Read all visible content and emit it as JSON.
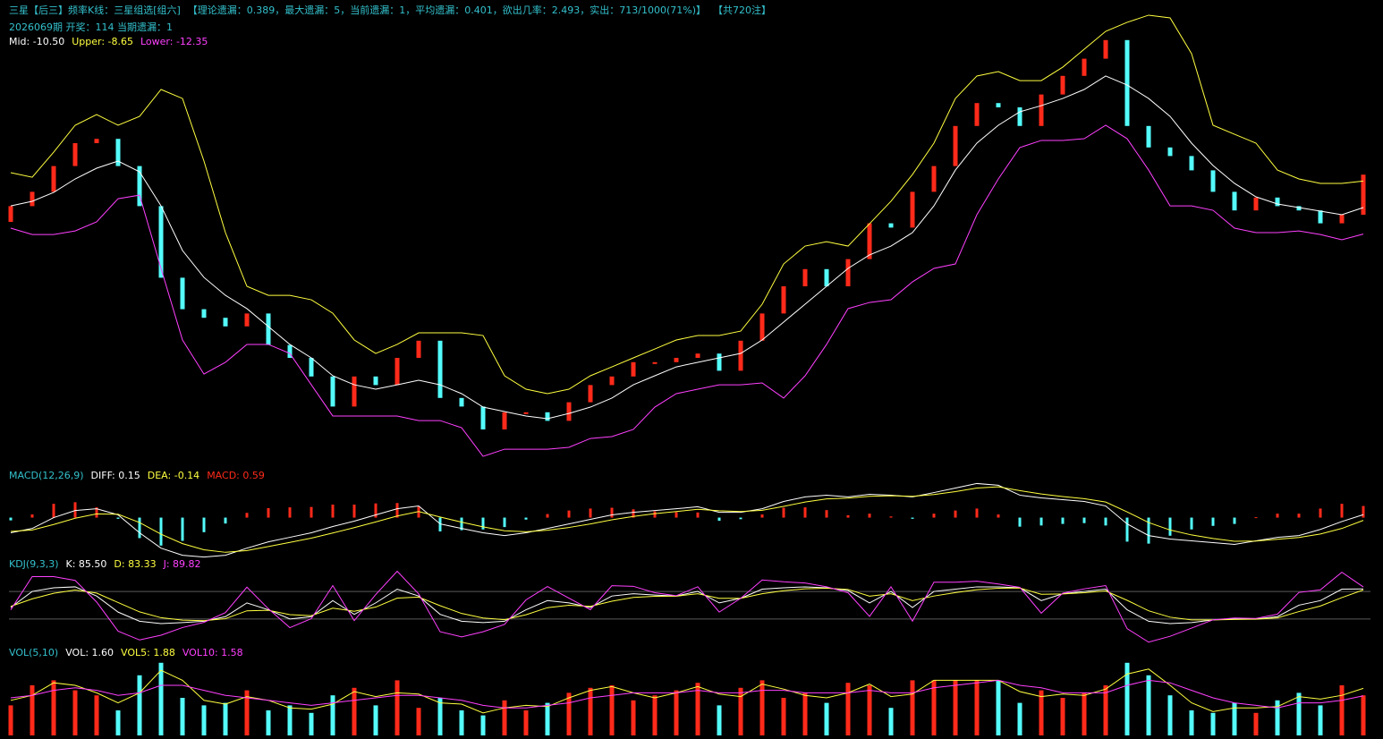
{
  "header": {
    "title": "三星【后三】频率K线：三星组选[组六]",
    "stats": "【理论遗漏：0.389，最大遗漏：5，当前遗漏：1，平均遗漏：0.401，欲出几率：2.493，实出：713/1000(71%)】",
    "count": "【共720注】",
    "draw_info": "2026069期 开奖：114 当期遗漏：1"
  },
  "chart_data": [
    {
      "type": "candlestick",
      "up_color": "#ff2a1a",
      "down_color": "#54fcfc",
      "ylim": [
        -28.5,
        3
      ],
      "open": [
        -11.5,
        -10.4,
        -9.4,
        -7.6,
        -6.0,
        -5.7,
        -7.6,
        -10.4,
        -15.4,
        -17.6,
        -18.2,
        -18.8,
        -17.9,
        -20.1,
        -21.0,
        -22.3,
        -24.4,
        -22.3,
        -22.9,
        -21.0,
        -19.8,
        -23.8,
        -24.4,
        -26.0,
        -24.8,
        -24.8,
        -25.4,
        -24.1,
        -22.9,
        -22.3,
        -21.3,
        -21.3,
        -21.0,
        -20.7,
        -21.9,
        -19.8,
        -17.9,
        -16.0,
        -14.8,
        -16.0,
        -14.1,
        -11.6,
        -11.9,
        -9.4,
        -7.6,
        -4.8,
        -3.2,
        -3.5,
        -4.8,
        -2.6,
        -1.3,
        -0.1,
        1.2,
        -4.8,
        -6.3,
        -6.9,
        -7.9,
        -9.4,
        -10.7,
        -9.8,
        -10.4,
        -10.7,
        -11.6,
        -11.0
      ],
      "close": [
        -10.4,
        -9.4,
        -7.6,
        -6.0,
        -5.7,
        -7.6,
        -10.4,
        -15.4,
        -17.6,
        -18.2,
        -18.8,
        -17.9,
        -20.1,
        -21.0,
        -22.3,
        -24.4,
        -22.3,
        -22.9,
        -21.0,
        -19.8,
        -23.8,
        -24.4,
        -26.0,
        -24.8,
        -24.8,
        -25.4,
        -24.1,
        -22.9,
        -22.3,
        -21.3,
        -21.3,
        -21.0,
        -20.7,
        -21.9,
        -19.8,
        -17.9,
        -16.0,
        -14.8,
        -16.0,
        -14.1,
        -11.6,
        -11.9,
        -9.4,
        -7.6,
        -4.8,
        -3.2,
        -3.5,
        -4.8,
        -2.6,
        -1.3,
        -0.1,
        1.2,
        -4.8,
        -6.3,
        -6.9,
        -7.9,
        -9.4,
        -10.7,
        -9.8,
        -10.4,
        -10.7,
        -11.6,
        -11.0,
        -8.2
      ],
      "series": [
        {
          "label": "Mid: -10.50",
          "color": "#ffffff",
          "values": [
            -10.38,
            -10.06,
            -9.44,
            -8.5,
            -7.75,
            -7.25,
            -8.0,
            -10.38,
            -13.5,
            -15.38,
            -16.63,
            -17.56,
            -18.81,
            -20.06,
            -21.0,
            -22.25,
            -22.88,
            -23.19,
            -22.88,
            -22.56,
            -22.88,
            -23.5,
            -24.44,
            -24.75,
            -25.06,
            -25.25,
            -24.88,
            -24.44,
            -23.81,
            -22.88,
            -22.25,
            -21.63,
            -21.31,
            -21.0,
            -20.69,
            -19.75,
            -18.5,
            -17.25,
            -16.0,
            -14.75,
            -13.81,
            -13.19,
            -12.25,
            -10.38,
            -7.88,
            -6.0,
            -4.75,
            -3.81,
            -3.38,
            -2.88,
            -2.25,
            -1.31,
            -1.94,
            -2.88,
            -4.13,
            -6.0,
            -7.56,
            -8.81,
            -9.75,
            -10.25,
            -10.5,
            -10.75,
            -11.0,
            -10.5
          ]
        },
        {
          "label": "Upper: -8.65",
          "color": "#ffff40",
          "values": [
            -8.06,
            -8.38,
            -6.63,
            -4.75,
            -4.0,
            -4.75,
            -4.13,
            -2.25,
            -2.88,
            -7.25,
            -12.25,
            -16.0,
            -16.63,
            -16.63,
            -16.94,
            -17.88,
            -19.75,
            -20.69,
            -20.06,
            -19.25,
            -19.25,
            -19.25,
            -19.44,
            -22.25,
            -23.19,
            -23.5,
            -23.19,
            -22.25,
            -21.63,
            -21.0,
            -20.38,
            -19.75,
            -19.44,
            -19.44,
            -19.13,
            -17.25,
            -14.44,
            -13.19,
            -12.88,
            -13.19,
            -11.63,
            -10.06,
            -8.19,
            -6.0,
            -2.88,
            -1.31,
            -1.0,
            -1.63,
            -1.63,
            -0.69,
            0.56,
            1.81,
            2.44,
            2.94,
            2.75,
            0.25,
            -4.75,
            -5.38,
            -6.0,
            -7.88,
            -8.5,
            -8.81,
            -8.81,
            -8.65
          ]
        },
        {
          "label": "Lower: -12.35",
          "color": "#ff40ff",
          "values": [
            -11.94,
            -12.38,
            -12.38,
            -12.13,
            -11.5,
            -9.88,
            -9.63,
            -14.75,
            -19.75,
            -22.13,
            -21.31,
            -20.06,
            -20.06,
            -20.69,
            -22.88,
            -25.06,
            -25.06,
            -25.06,
            -25.06,
            -25.38,
            -25.38,
            -25.88,
            -27.88,
            -27.38,
            -27.38,
            -27.38,
            -27.25,
            -26.63,
            -26.5,
            -26.0,
            -24.44,
            -23.5,
            -23.19,
            -22.88,
            -22.88,
            -22.75,
            -23.81,
            -22.25,
            -20.06,
            -17.56,
            -17.13,
            -16.94,
            -15.69,
            -14.75,
            -14.44,
            -11.0,
            -8.5,
            -6.31,
            -5.81,
            -5.81,
            -5.69,
            -4.75,
            -5.69,
            -7.88,
            -10.38,
            -10.38,
            -10.69,
            -11.94,
            -12.25,
            -12.25,
            -12.13,
            -12.38,
            -12.75,
            -12.35
          ]
        }
      ]
    },
    {
      "type": "bar",
      "title": "MACD(12,26,9)",
      "up_color": "#ff2a1a",
      "down_color": "#54fcfc",
      "ylim": [
        -2.2,
        1.75
      ],
      "values": [
        -0.14,
        0.16,
        0.7,
        0.78,
        0.52,
        -0.06,
        -1.04,
        -1.42,
        -1.18,
        -0.74,
        -0.3,
        0.24,
        0.48,
        0.52,
        0.54,
        0.66,
        0.66,
        0.72,
        0.74,
        0.56,
        -0.7,
        -0.64,
        -0.6,
        -0.48,
        -0.1,
        0.18,
        0.36,
        0.46,
        0.5,
        0.42,
        0.32,
        0.28,
        0.26,
        -0.16,
        -0.08,
        0.16,
        0.5,
        0.52,
        0.38,
        0.12,
        0.2,
        0.06,
        -0.06,
        0.2,
        0.36,
        0.46,
        0.16,
        -0.46,
        -0.4,
        -0.32,
        -0.28,
        -0.4,
        -1.22,
        -1.32,
        -0.92,
        -0.6,
        -0.42,
        -0.32,
        0.02,
        0.2,
        0.2,
        0.46,
        0.7,
        0.59
      ],
      "value_color": "#ff2a1a",
      "value_label": "MACD: 0.59",
      "series": [
        {
          "label": "DIFF: 0.15",
          "color": "#ffffff",
          "values": [
            -0.77,
            -0.55,
            0,
            0.36,
            0.45,
            0.14,
            -0.77,
            -1.55,
            -1.91,
            -2.0,
            -1.91,
            -1.55,
            -1.23,
            -1.0,
            -0.77,
            -0.45,
            -0.18,
            0.14,
            0.45,
            0.59,
            -0.32,
            -0.55,
            -0.77,
            -0.91,
            -0.77,
            -0.55,
            -0.32,
            -0.09,
            0.14,
            0.27,
            0.36,
            0.45,
            0.55,
            0.27,
            0.27,
            0.45,
            0.82,
            1.05,
            1.14,
            1.05,
            1.18,
            1.14,
            1.05,
            1.27,
            1.5,
            1.73,
            1.64,
            1.14,
            1.0,
            0.91,
            0.82,
            0.59,
            -0.32,
            -0.91,
            -1.09,
            -1.18,
            -1.27,
            -1.36,
            -1.18,
            -1.0,
            -0.91,
            -0.6,
            -0.2,
            0.15
          ]
        },
        {
          "label": "DEA: -0.14",
          "color": "#ffff40",
          "values": [
            -0.7,
            -0.63,
            -0.35,
            -0.03,
            0.19,
            0.17,
            -0.25,
            -0.84,
            -1.32,
            -1.63,
            -1.76,
            -1.67,
            -1.47,
            -1.26,
            -1.04,
            -0.78,
            -0.51,
            -0.22,
            0.08,
            0.31,
            0.03,
            -0.23,
            -0.47,
            -0.67,
            -0.72,
            -0.64,
            -0.5,
            -0.32,
            -0.11,
            0.06,
            0.2,
            0.31,
            0.42,
            0.35,
            0.31,
            0.37,
            0.57,
            0.79,
            0.95,
            0.99,
            1.08,
            1.11,
            1.08,
            1.17,
            1.32,
            1.5,
            1.56,
            1.37,
            1.2,
            1.07,
            0.96,
            0.79,
            0.29,
            -0.25,
            -0.63,
            -0.88,
            -1.06,
            -1.2,
            -1.19,
            -1.1,
            -1.01,
            -0.83,
            -0.55,
            -0.14
          ]
        }
      ]
    },
    {
      "type": "line",
      "title": "KDJ(9,3,3)",
      "ylim": [
        -35,
        125
      ],
      "hlines": [
        20,
        80
      ],
      "hline_color": "#5a5a5a",
      "series": [
        {
          "label": "K: 85.50",
          "color": "#ffffff",
          "values": [
            45,
            80,
            88,
            90,
            70,
            35,
            15,
            10,
            12,
            15,
            25,
            55,
            40,
            20,
            25,
            60,
            30,
            55,
            85,
            70,
            30,
            15,
            12,
            15,
            40,
            60,
            55,
            45,
            70,
            75,
            72,
            70,
            80,
            55,
            65,
            85,
            88,
            90,
            88,
            82,
            55,
            80,
            45,
            80,
            85,
            90,
            90,
            88,
            60,
            75,
            80,
            85,
            40,
            15,
            10,
            12,
            18,
            20,
            20,
            25,
            50,
            60,
            85,
            85.5
          ]
        },
        {
          "label": "D: 83.33",
          "color": "#ffff40",
          "values": [
            47.5,
            63.8,
            75.9,
            83.0,
            76.5,
            55.8,
            35.4,
            22.7,
            17.4,
            16.2,
            20.6,
            37.8,
            38.9,
            29.5,
            27.2,
            43.6,
            36.8,
            45.9,
            65.5,
            67.7,
            48.9,
            32.0,
            22.0,
            18.5,
            29.2,
            44.6,
            49.8,
            47.4,
            58.7,
            66.9,
            69.4,
            69.7,
            74.9,
            65.0,
            65.0,
            75.0,
            81.5,
            85.8,
            86.9,
            84.4,
            69.7,
            74.9,
            59.9,
            70.0,
            77.5,
            83.8,
            86.9,
            87.5,
            73.7,
            74.4,
            77.2,
            81.1,
            60.6,
            37.8,
            23.9,
            18.0,
            18.0,
            19.0,
            19.5,
            22.3,
            36.1,
            48.2,
            66.6,
            83.33
          ]
        },
        {
          "label": "J: 89.82",
          "color": "#ff40ff",
          "values": [
            40,
            112.4,
            112.2,
            104,
            57,
            -6.6,
            -25.8,
            -15.4,
            1.2,
            12.6,
            33.8,
            89.4,
            42.2,
            1,
            20.6,
            92.8,
            16.4,
            73.2,
            124,
            74.6,
            -7.8,
            -19,
            -8,
            8,
            61.6,
            90.8,
            65.4,
            40.2,
            92.6,
            91.2,
            77.2,
            70.6,
            90.2,
            35,
            65,
            105,
            101,
            98.4,
            90.2,
            77.2,
            25.6,
            90.2,
            15.2,
            100,
            100,
            102.4,
            96.2,
            89,
            32.6,
            76.2,
            85.6,
            92.8,
            -1.2,
            -30.6,
            -17.8,
            0,
            18,
            22,
            21,
            30.4,
            77.8,
            83.6,
            121.8,
            89.82
          ]
        }
      ]
    },
    {
      "type": "volume",
      "title": "VOL(5,10)",
      "up_color": "#ff2a1a",
      "down_color": "#54fcfc",
      "ylim": [
        0,
        3
      ],
      "values": [
        1.2,
        2.0,
        2.2,
        1.8,
        1.6,
        1.0,
        2.4,
        2.9,
        1.5,
        1.2,
        1.3,
        1.8,
        1.0,
        1.2,
        0.9,
        1.6,
        1.9,
        1.2,
        2.2,
        1.1,
        1.5,
        1.0,
        0.8,
        1.4,
        1.0,
        1.3,
        1.7,
        1.9,
        2.0,
        1.4,
        1.6,
        1.8,
        2.1,
        1.2,
        1.9,
        2.2,
        1.5,
        1.7,
        1.3,
        2.1,
        2.0,
        1.1,
        2.2,
        2.2,
        2.2,
        2.2,
        2.2,
        1.3,
        1.8,
        1.5,
        1.7,
        2.0,
        2.9,
        2.4,
        1.6,
        1.0,
        0.9,
        1.3,
        0.9,
        1.4,
        1.7,
        1.2,
        2.0,
        1.6
      ],
      "value_color": "#ffffff",
      "value_label": "VOL: 1.60",
      "series": [
        {
          "label": "VOL5: 1.88",
          "color": "#ffff40",
          "values": [
            1.4,
            1.6,
            2.1,
            2.0,
            1.7,
            1.3,
            1.7,
            2.6,
            2.2,
            1.4,
            1.25,
            1.55,
            1.4,
            1.1,
            1.05,
            1.25,
            1.75,
            1.55,
            1.7,
            1.65,
            1.3,
            1.25,
            0.9,
            1.1,
            1.2,
            1.15,
            1.5,
            1.8,
            1.95,
            1.7,
            1.5,
            1.7,
            1.95,
            1.65,
            1.55,
            2.05,
            1.85,
            1.6,
            1.5,
            1.7,
            2.05,
            1.55,
            1.65,
            2.2,
            2.2,
            2.2,
            2.2,
            1.75,
            1.55,
            1.65,
            1.6,
            1.85,
            2.45,
            2.65,
            2.0,
            1.3,
            0.95,
            1.1,
            1.1,
            1.15,
            1.55,
            1.45,
            1.6,
            1.88
          ]
        },
        {
          "label": "VOL10: 1.58",
          "color": "#ff40ff",
          "values": [
            1.5,
            1.6,
            1.8,
            1.9,
            1.8,
            1.6,
            1.7,
            2.0,
            2.0,
            1.8,
            1.6,
            1.5,
            1.4,
            1.3,
            1.2,
            1.3,
            1.4,
            1.5,
            1.6,
            1.6,
            1.5,
            1.4,
            1.2,
            1.1,
            1.1,
            1.2,
            1.3,
            1.5,
            1.6,
            1.7,
            1.7,
            1.7,
            1.8,
            1.7,
            1.7,
            1.8,
            1.8,
            1.7,
            1.7,
            1.7,
            1.8,
            1.7,
            1.7,
            1.9,
            2.0,
            2.1,
            2.2,
            2.0,
            1.9,
            1.7,
            1.7,
            1.7,
            2.0,
            2.2,
            2.1,
            1.8,
            1.5,
            1.3,
            1.2,
            1.1,
            1.3,
            1.3,
            1.4,
            1.58
          ]
        }
      ]
    }
  ]
}
